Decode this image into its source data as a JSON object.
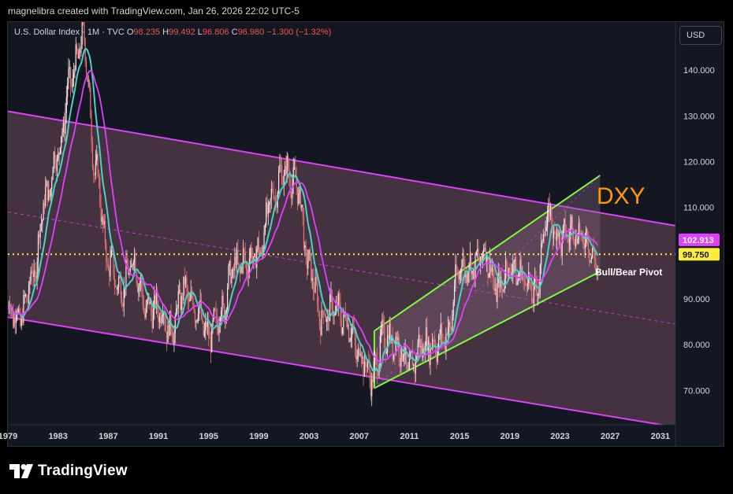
{
  "caption": "magnelibra created with TradingView.com, Jan 26, 2026 22:02 UTC-5",
  "legend": {
    "symbol": "U.S. Dollar Index · 1M · TVC",
    "open_label": "O",
    "open": "98.235",
    "high_label": "H",
    "high": "99.492",
    "low_label": "L",
    "low": "96.806",
    "close_label": "C",
    "close": "96.980",
    "change": "−1.300 (−1.32%)"
  },
  "currency_button": "USD",
  "footer": {
    "brand": "TradingView"
  },
  "colors": {
    "background": "#131722",
    "channel_line": "#e040fb",
    "channel_fill": "#5a3f4f",
    "short_ma": "#4dd0c4",
    "long_ma": "#e040fb",
    "up_candle": "#f8e5e5",
    "down_candle": "#e57373",
    "green_channel": "#7cfc3c",
    "pivot": "#ffeb3b",
    "dxy_text": "#ff9800"
  },
  "chart_data": {
    "type": "candlestick",
    "title": "",
    "xlabel": "",
    "ylabel": "",
    "xlim": [
      1979,
      2032.2
    ],
    "ylim": [
      62.5,
      150.5
    ],
    "y_ticks": [
      "140.000",
      "130.000",
      "120.000",
      "110.000",
      "100.000",
      "90.000",
      "80.000",
      "70.000"
    ],
    "y_tick_values": [
      140,
      130,
      120,
      110,
      100,
      90,
      80,
      70
    ],
    "x_ticks": [
      "1979",
      "1983",
      "1987",
      "1991",
      "1995",
      "1999",
      "2003",
      "2007",
      "2011",
      "2015",
      "2019",
      "2023",
      "2027",
      "2031"
    ],
    "x_tick_values": [
      1979,
      1983,
      1987,
      1991,
      1995,
      1999,
      2003,
      2007,
      2011,
      2015,
      2019,
      2023,
      2027,
      2031
    ],
    "price_anchors": [
      [
        1979,
        88
      ],
      [
        1980,
        86
      ],
      [
        1981,
        95
      ],
      [
        1982,
        112
      ],
      [
        1983,
        122
      ],
      [
        1984,
        138
      ],
      [
        1985,
        147
      ],
      [
        1986,
        118
      ],
      [
        1987,
        98
      ],
      [
        1988,
        92
      ],
      [
        1989,
        98
      ],
      [
        1990,
        88
      ],
      [
        1991,
        88
      ],
      [
        1992,
        83
      ],
      [
        1993,
        92
      ],
      [
        1994,
        88
      ],
      [
        1995,
        82
      ],
      [
        1996,
        87
      ],
      [
        1997,
        97
      ],
      [
        1998,
        98
      ],
      [
        1999,
        100
      ],
      [
        2000,
        112
      ],
      [
        2001,
        118
      ],
      [
        2002,
        115
      ],
      [
        2003,
        97
      ],
      [
        2004,
        86
      ],
      [
        2005,
        88
      ],
      [
        2006,
        85
      ],
      [
        2007,
        78
      ],
      [
        2008,
        73
      ],
      [
        2009,
        82
      ],
      [
        2010,
        80
      ],
      [
        2011,
        75
      ],
      [
        2012,
        80
      ],
      [
        2013,
        80
      ],
      [
        2014,
        82
      ],
      [
        2015,
        97
      ],
      [
        2016,
        97
      ],
      [
        2017,
        100
      ],
      [
        2018,
        92
      ],
      [
        2019,
        97
      ],
      [
        2020,
        95
      ],
      [
        2021,
        91
      ],
      [
        2022,
        108
      ],
      [
        2023,
        103
      ],
      [
        2024,
        105
      ],
      [
        2025,
        103
      ],
      [
        2026,
        97
      ]
    ],
    "major_channel": {
      "upper": [
        [
          1979,
          131
        ],
        [
          2032.2,
          106
        ]
      ],
      "lower": [
        [
          1979,
          86
        ],
        [
          2032.2,
          62
        ]
      ],
      "mid": [
        [
          1979,
          109
        ],
        [
          2032.2,
          84.5
        ]
      ]
    },
    "green_channel": {
      "upper": [
        [
          2008.2,
          83
        ],
        [
          2026.2,
          117
        ]
      ],
      "lower": [
        [
          2008.2,
          70.5
        ],
        [
          2026.2,
          96
        ]
      ]
    },
    "pivot": {
      "label": "Bull/Bear Pivot",
      "value": 99.75,
      "value_label": "99.750"
    },
    "last_price_label": "102.913",
    "last_price_value": 102.913,
    "annotation": "DXY"
  }
}
